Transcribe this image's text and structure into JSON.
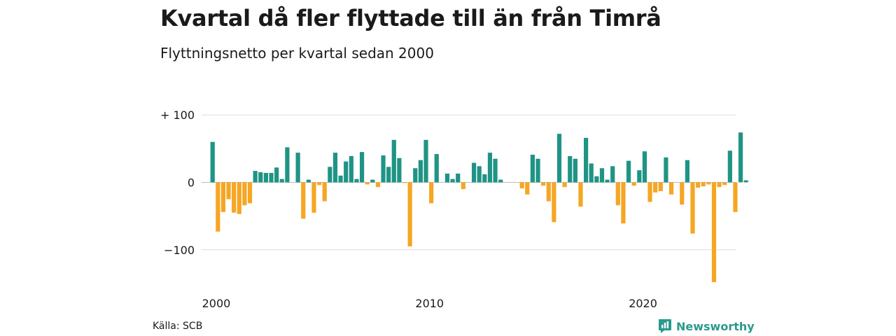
{
  "title": "Kvartal då fler flyttade till än från Timrå",
  "subtitle": "Flyttningsnetto per kvartal sedan 2000",
  "source": "Källa: SCB",
  "brand": "Newsworthy",
  "colors": {
    "positive": "#1f9485",
    "negative": "#f5a623",
    "grid": "#dddddd",
    "brand": "#2a9a8c"
  },
  "chart_data": {
    "type": "bar",
    "start_year": 2000,
    "periods_per_year": 4,
    "x_tick_labels": [
      "2000",
      "2010",
      "2020"
    ],
    "y_tick_labels": [
      "+ 100",
      "0",
      "−100"
    ],
    "y_tick_values": [
      100,
      0,
      -100
    ],
    "ylim": [
      -150,
      100
    ],
    "grid": true,
    "values": [
      60,
      -73,
      -44,
      -25,
      -45,
      -47,
      -34,
      -31,
      17,
      15,
      14,
      14,
      22,
      5,
      52,
      0,
      44,
      -54,
      4,
      -45,
      -4,
      -28,
      23,
      44,
      10,
      31,
      39,
      5,
      45,
      -3,
      4,
      -7,
      40,
      23,
      63,
      36,
      -1,
      -95,
      21,
      33,
      63,
      -31,
      42,
      0,
      13,
      5,
      13,
      -10,
      0,
      29,
      24,
      12,
      44,
      35,
      4,
      0,
      0,
      0,
      -9,
      -18,
      41,
      35,
      -5,
      -28,
      -59,
      72,
      -7,
      39,
      35,
      -36,
      66,
      28,
      9,
      21,
      4,
      24,
      -34,
      -61,
      32,
      -5,
      18,
      46,
      -29,
      -15,
      -13,
      37,
      -18,
      0,
      -33,
      33,
      -76,
      -8,
      -6,
      -3,
      -148,
      -7,
      -4,
      47,
      -44,
      74,
      3
    ]
  }
}
